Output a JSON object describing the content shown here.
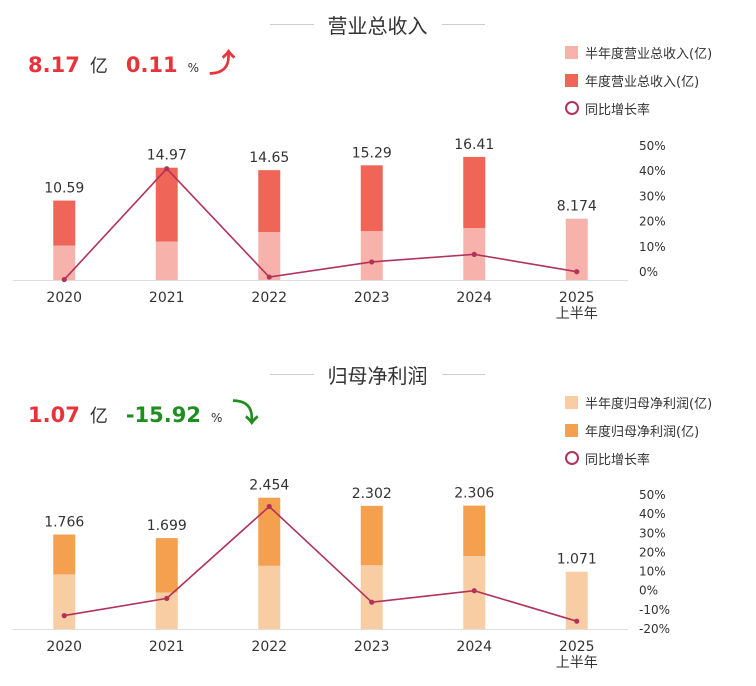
{
  "colors": {
    "rev_half": "#f7b3ab",
    "rev_full": "#ef6659",
    "profit_half": "#f8cda4",
    "profit_full": "#f4a04f",
    "growth_line": "#b3325a",
    "up": "#e8333a",
    "down": "#1e8f1e"
  },
  "revenue": {
    "title": "营业总收入",
    "kpi": {
      "value": "8.17",
      "unit": "亿",
      "pct": "0.11",
      "pct_unit": "%",
      "arrow": "⤴"
    },
    "legend": {
      "half": "半年度营业总收入(亿)",
      "full": "年度营业总收入(亿)",
      "growth": "同比增长率"
    }
  },
  "profit": {
    "title": "归母净利润",
    "kpi": {
      "value": "1.07",
      "unit": "亿",
      "pct": "-15.92",
      "pct_unit": "%",
      "arrow": "⤵"
    },
    "legend": {
      "half": "半年度归母净利润(亿)",
      "full": "年度归母净利润(亿)",
      "growth": "同比增长率"
    }
  },
  "chart_data": [
    {
      "type": "bar",
      "title": "营业总收入",
      "categories": [
        "2020",
        "2021",
        "2022",
        "2023",
        "2024",
        "2025\n上半年"
      ],
      "series": [
        {
          "name": "半年度营业总收入(亿)",
          "values": [
            4.6,
            5.1,
            6.4,
            6.5,
            6.9,
            8.174
          ]
        },
        {
          "name": "年度营业总收入(亿)",
          "values": [
            10.59,
            14.97,
            14.65,
            15.29,
            16.41,
            null
          ]
        },
        {
          "name": "同比增长率",
          "axis": "right",
          "values": [
            -3,
            41,
            -2,
            4,
            7,
            0.11
          ]
        }
      ],
      "bar_labels": [
        "10.59",
        "14.97",
        "14.65",
        "15.29",
        "16.41",
        "8.174"
      ],
      "y_right_ticks": [
        "50%",
        "40%",
        "30%",
        "20%",
        "10%",
        "0%"
      ],
      "y_right_range": [
        0,
        50
      ]
    },
    {
      "type": "bar",
      "title": "归母净利润",
      "categories": [
        "2020",
        "2021",
        "2022",
        "2023",
        "2024",
        "2025\n上半年"
      ],
      "series": [
        {
          "name": "半年度归母净利润(亿)",
          "values": [
            1.02,
            0.68,
            1.18,
            1.19,
            1.36,
            1.071
          ]
        },
        {
          "name": "年度归母净利润(亿)",
          "values": [
            1.766,
            1.699,
            2.454,
            2.302,
            2.306,
            null
          ]
        },
        {
          "name": "同比增长率",
          "axis": "right",
          "values": [
            -13,
            -4,
            44,
            -6,
            0,
            -15.92
          ]
        }
      ],
      "bar_labels": [
        "1.766",
        "1.699",
        "2.454",
        "2.302",
        "2.306",
        "1.071"
      ],
      "y_right_ticks": [
        "50%",
        "40%",
        "30%",
        "20%",
        "10%",
        "0%",
        "-10%",
        "-20%"
      ],
      "y_right_range": [
        -20,
        50
      ]
    }
  ]
}
